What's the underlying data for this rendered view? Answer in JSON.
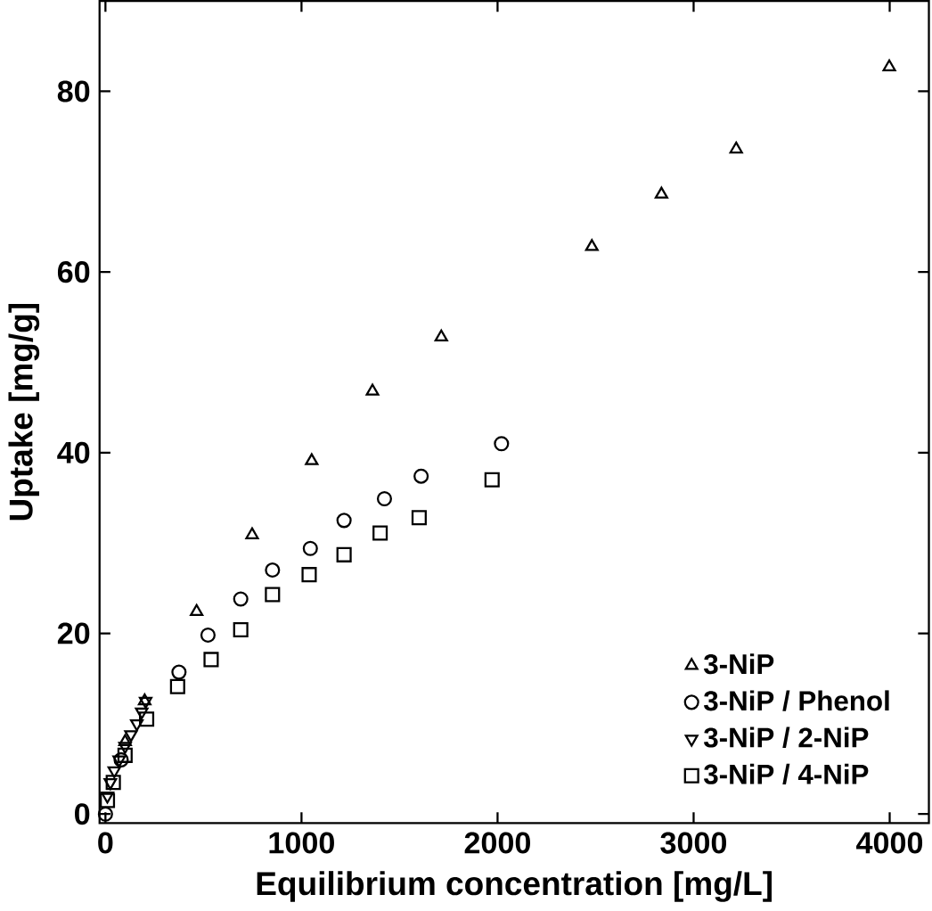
{
  "chart_data": {
    "type": "scatter",
    "xlabel": "Equilibrium concentration [mg/L]",
    "ylabel": "Uptake [mg/g]",
    "xlim": [
      -30,
      4200
    ],
    "ylim": [
      -1,
      90
    ],
    "xticks": [
      0,
      1000,
      2000,
      3000,
      4000
    ],
    "yticks": [
      0,
      20,
      40,
      60,
      80
    ],
    "legend": "bottom right",
    "grid": false,
    "series": [
      {
        "name": "3-NiP",
        "color": "#000000",
        "marker": "triangle",
        "x": [
          100,
          200,
          465,
          748,
          1052,
          1362,
          1713,
          2481,
          2836,
          3217,
          3998
        ],
        "values": [
          8,
          12.5,
          22.4,
          30.9,
          39.1,
          46.8,
          52.8,
          62.8,
          68.6,
          73.6,
          82.7
        ]
      },
      {
        "name": "3-NiP / Phenol",
        "color": "#000000",
        "marker": "circle",
        "x": [
          0,
          80,
          375,
          523,
          690,
          852,
          1045,
          1217,
          1423,
          1610,
          2020
        ],
        "values": [
          0,
          6,
          15.7,
          19.8,
          23.8,
          27.0,
          29.4,
          32.5,
          34.9,
          37.4,
          41.0
        ]
      },
      {
        "name": "3-NiP / 2-NiP",
        "color": "#000000",
        "marker": "triangle down",
        "x": [
          10,
          25,
          45,
          70,
          100,
          130,
          160,
          185,
          205
        ],
        "values": [
          2,
          3.5,
          4.8,
          6,
          7.5,
          8.8,
          10,
          11.3,
          12.5
        ]
      },
      {
        "name": "3-NiP / 4-NiP",
        "color": "#000000",
        "marker": "square",
        "x": [
          10,
          40,
          100,
          210,
          368,
          539,
          690,
          852,
          1039,
          1217,
          1401,
          1600,
          1972
        ],
        "values": [
          1.5,
          3.5,
          6.5,
          10.5,
          14.1,
          17.1,
          20.4,
          24.3,
          26.5,
          28.7,
          31.1,
          32.8,
          37.0
        ]
      }
    ]
  }
}
